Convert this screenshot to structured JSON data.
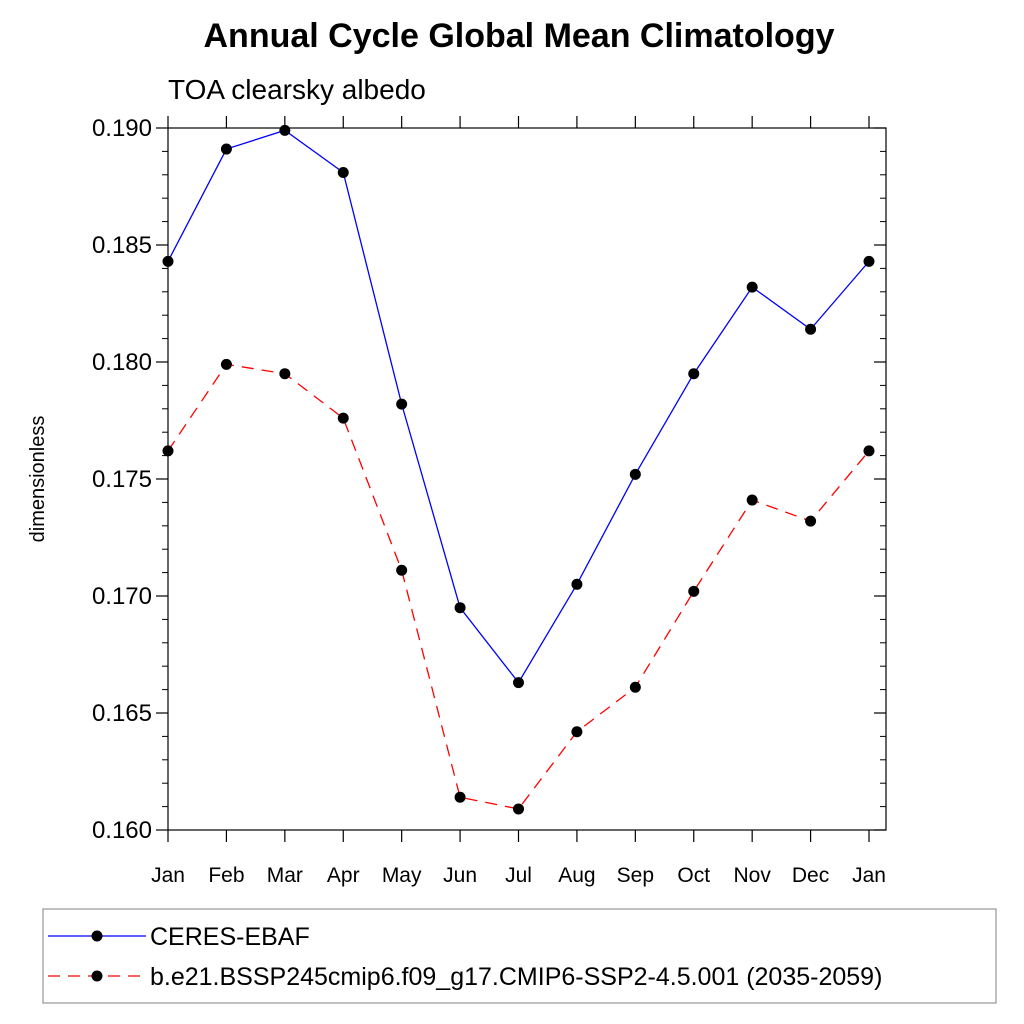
{
  "chart_data": {
    "type": "line",
    "title": "Annual Cycle Global Mean Climatology",
    "subtitle": "TOA clearsky albedo",
    "xlabel": "",
    "ylabel": "dimensionless",
    "categories": [
      "Jan",
      "Feb",
      "Mar",
      "Apr",
      "May",
      "Jun",
      "Jul",
      "Aug",
      "Sep",
      "Oct",
      "Nov",
      "Dec",
      "Jan"
    ],
    "ylim": [
      0.16,
      0.19
    ],
    "yticks": [
      "0.160",
      "0.165",
      "0.170",
      "0.175",
      "0.180",
      "0.185",
      "0.190"
    ],
    "grid": false,
    "legend_position": "bottom",
    "series": [
      {
        "name": "CERES-EBAF",
        "color": "#0000ff",
        "line_style": "solid",
        "marker": "circle",
        "values": [
          0.1843,
          0.1891,
          0.1899,
          0.1881,
          0.1782,
          0.1695,
          0.1663,
          0.1705,
          0.1752,
          0.1795,
          0.1832,
          0.1814,
          0.1843
        ]
      },
      {
        "name": "b.e21.BSSP245cmip6.f09_g17.CMIP6-SSP2-4.5.001 (2035-2059)",
        "color": "#ff0000",
        "line_style": "dashed",
        "marker": "circle",
        "values": [
          0.1762,
          0.1799,
          0.1795,
          0.1776,
          0.1711,
          0.1614,
          0.1609,
          0.1642,
          0.1661,
          0.1702,
          0.1741,
          0.1732,
          0.1762
        ]
      }
    ]
  }
}
